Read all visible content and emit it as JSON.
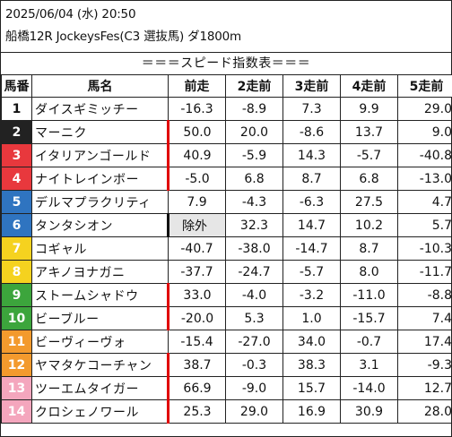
{
  "header": {
    "datetime": "2025/06/04 (水) 20:50",
    "race": "船橋12R JockeysFes(C3 選抜馬) ダ1800m"
  },
  "title": "＝＝＝スピード指数表＝＝＝",
  "columns": [
    "馬番",
    "馬名",
    "前走",
    "2走前",
    "3走前",
    "4走前",
    "5走前"
  ],
  "colors": {
    "frame_1": "#ffffff",
    "frame_2": "#222222",
    "frame_3": "#e8383d",
    "frame_4": "#2f74c0",
    "frame_5": "#f5d21f",
    "frame_6": "#3ca53c",
    "frame_7": "#f39a2d",
    "frame_8": "#f4a6bd",
    "marker_red": "#e00000"
  },
  "rows": [
    {
      "num": "1",
      "name": "ダイスギミッチー",
      "frame_color": "#ffffff",
      "num_color": "#111111",
      "marker": "none",
      "v1": "-16.3",
      "v2": "-8.9",
      "v3": "7.3",
      "v4": "9.9",
      "v5": "29.0"
    },
    {
      "num": "2",
      "name": "マーニク",
      "frame_color": "#222222",
      "num_color": "#ffffff",
      "marker": "red",
      "v1": "50.0",
      "v2": "20.0",
      "v3": "-8.6",
      "v4": "13.7",
      "v5": "9.0"
    },
    {
      "num": "3",
      "name": "イタリアンゴールド",
      "frame_color": "#e8383d",
      "num_color": "#ffffff",
      "marker": "red",
      "v1": "40.9",
      "v2": "-5.9",
      "v3": "14.3",
      "v4": "-5.7",
      "v5": "-40.8"
    },
    {
      "num": "4",
      "name": "ナイトレインボー",
      "frame_color": "#e8383d",
      "num_color": "#ffffff",
      "marker": "red",
      "v1": "-5.0",
      "v2": "6.8",
      "v3": "8.7",
      "v4": "6.8",
      "v5": "-13.0"
    },
    {
      "num": "5",
      "name": "デルマプラクリティ",
      "frame_color": "#2f74c0",
      "num_color": "#ffffff",
      "marker": "none",
      "v1": "7.9",
      "v2": "-4.3",
      "v3": "-6.3",
      "v4": "27.5",
      "v5": "4.7"
    },
    {
      "num": "6",
      "name": "タンタシオン",
      "frame_color": "#2f74c0",
      "num_color": "#ffffff",
      "marker": "black",
      "v1": "除外",
      "v2": "32.3",
      "v3": "14.7",
      "v4": "10.2",
      "v5": "5.7",
      "excluded": true
    },
    {
      "num": "7",
      "name": "コギャル",
      "frame_color": "#f5d21f",
      "num_color": "#ffffff",
      "marker": "none",
      "v1": "-40.7",
      "v2": "-38.0",
      "v3": "-14.7",
      "v4": "8.7",
      "v5": "-10.3"
    },
    {
      "num": "8",
      "name": "アキノヨナガニ",
      "frame_color": "#f5d21f",
      "num_color": "#ffffff",
      "marker": "none",
      "v1": "-37.7",
      "v2": "-24.7",
      "v3": "-5.7",
      "v4": "8.0",
      "v5": "-11.7"
    },
    {
      "num": "9",
      "name": "ストームシャドウ",
      "frame_color": "#3ca53c",
      "num_color": "#ffffff",
      "marker": "red",
      "v1": "33.0",
      "v2": "-4.0",
      "v3": "-3.2",
      "v4": "-11.0",
      "v5": "-8.8"
    },
    {
      "num": "10",
      "name": "ビーブルー",
      "frame_color": "#3ca53c",
      "num_color": "#ffffff",
      "marker": "red",
      "v1": "-20.0",
      "v2": "5.3",
      "v3": "1.0",
      "v4": "-15.7",
      "v5": "7.4"
    },
    {
      "num": "11",
      "name": "ビーヴィーヴォ",
      "frame_color": "#f39a2d",
      "num_color": "#ffffff",
      "marker": "none",
      "v1": "-15.4",
      "v2": "-27.0",
      "v3": "34.0",
      "v4": "-0.7",
      "v5": "17.4"
    },
    {
      "num": "12",
      "name": "ヤマタケコーチャン",
      "frame_color": "#f39a2d",
      "num_color": "#ffffff",
      "marker": "red",
      "v1": "38.7",
      "v2": "-0.3",
      "v3": "38.3",
      "v4": "3.1",
      "v5": "-9.3"
    },
    {
      "num": "13",
      "name": "ツーエムタイガー",
      "frame_color": "#f4a6bd",
      "num_color": "#ffffff",
      "marker": "red",
      "v1": "66.9",
      "v2": "-9.0",
      "v3": "15.7",
      "v4": "-14.0",
      "v5": "12.7"
    },
    {
      "num": "14",
      "name": "クロシェノワール",
      "frame_color": "#f4a6bd",
      "num_color": "#ffffff",
      "marker": "red",
      "v1": "25.3",
      "v2": "29.0",
      "v3": "16.9",
      "v4": "30.9",
      "v5": "28.0"
    }
  ]
}
